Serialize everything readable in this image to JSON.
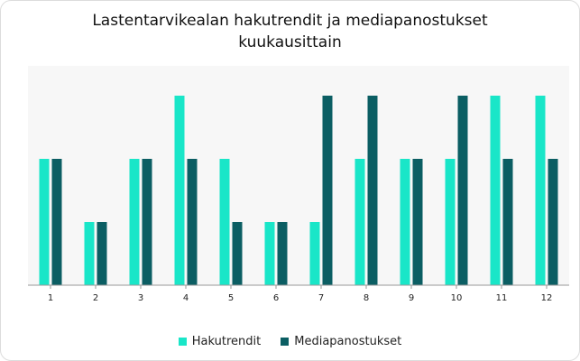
{
  "chart_data": {
    "type": "bar",
    "title_lines": [
      "Lastentarvikealan hakutrendit ja mediapanostukset",
      "kuukausittain"
    ],
    "categories": [
      "1",
      "2",
      "3",
      "4",
      "5",
      "6",
      "7",
      "8",
      "9",
      "10",
      "11",
      "12"
    ],
    "series": [
      {
        "name": "Hakutrendit",
        "color": "#19e6c8",
        "values": [
          2,
          1,
          2,
          3,
          2,
          1,
          1,
          2,
          2,
          2,
          3,
          3
        ]
      },
      {
        "name": "Mediapanostukset",
        "color": "#0b5e63",
        "values": [
          2,
          1,
          2,
          2,
          1,
          1,
          3,
          3,
          2,
          3,
          2,
          2
        ]
      }
    ],
    "ylim": [
      0,
      3
    ],
    "grid": false,
    "legend": "bottom"
  }
}
